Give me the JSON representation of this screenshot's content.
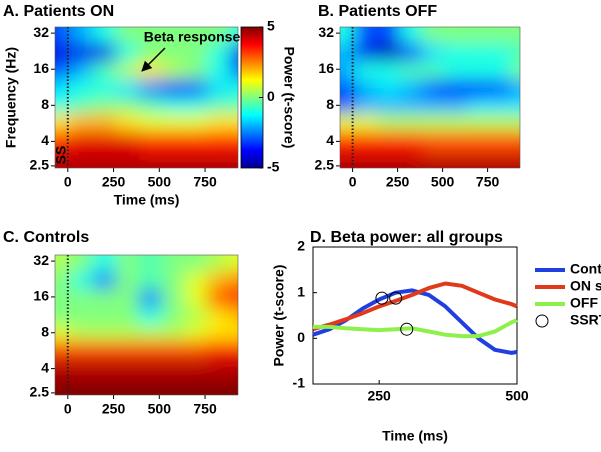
{
  "chart_data": [
    {
      "type": "heatmap",
      "title": "A. Patients ON",
      "xlabel": "Time (ms)",
      "ylabel": "Frequency (Hz)",
      "x": [
        -50,
        75,
        200,
        325,
        450,
        575,
        700,
        825,
        950
      ],
      "y": [
        2.5,
        4,
        6,
        8,
        11,
        16,
        22,
        32
      ],
      "values": [
        [
          4.5,
          4.5,
          4.5,
          4.5,
          4.5,
          4.5,
          4.5,
          4.5,
          4.5
        ],
        [
          3.5,
          4,
          4,
          4,
          3.5,
          3.5,
          3.5,
          3.5,
          3.5
        ],
        [
          1.5,
          2,
          2,
          1.5,
          1,
          1,
          1,
          1.5,
          1.5
        ],
        [
          -1,
          -0.5,
          0,
          0,
          -0.5,
          -1,
          -1,
          -0.5,
          -0.5
        ],
        [
          -1.5,
          -1,
          -1,
          -1.5,
          -2.5,
          -3.5,
          -3,
          -1.5,
          -1
        ],
        [
          -3,
          -2,
          -0.5,
          0.5,
          1.5,
          0.5,
          0,
          -1,
          -3
        ],
        [
          -4,
          -4,
          -4,
          -1,
          0,
          0,
          0,
          -1,
          -4
        ],
        [
          -3,
          -2,
          -1,
          0,
          0,
          0,
          0,
          0,
          -1
        ]
      ],
      "xlim": [
        -70,
        930
      ],
      "xticks": [
        0,
        250,
        500,
        750
      ],
      "ylim": [
        2.4,
        36
      ],
      "yticks": [
        2.5,
        4,
        8,
        16,
        32
      ],
      "ylog": true,
      "clim": [
        -5,
        5
      ],
      "colormap": "jet",
      "marker_x": 0,
      "colorbar": {
        "label": "Power (t-score)",
        "ticks": [
          5,
          0,
          -5
        ]
      },
      "annotations": [
        "Beta response",
        "SS"
      ]
    },
    {
      "type": "heatmap",
      "title": "B. Patients OFF",
      "x": [
        -50,
        75,
        200,
        325,
        450,
        575,
        700,
        825,
        950
      ],
      "y": [
        2.5,
        4,
        6,
        8,
        11,
        16,
        22,
        32
      ],
      "values": [
        [
          4.5,
          4.5,
          4.5,
          4.5,
          4.5,
          4.5,
          4.5,
          4.5,
          4.5
        ],
        [
          3.5,
          3.5,
          3.5,
          3.5,
          3,
          3,
          3,
          3,
          3
        ],
        [
          1,
          1,
          0.5,
          0.5,
          0.5,
          0.5,
          0.5,
          0.5,
          0.5
        ],
        [
          -3,
          -2,
          -2,
          -2,
          -2,
          -2,
          -1.5,
          -1.5,
          -1.5
        ],
        [
          -3,
          -2,
          -1.5,
          -2,
          -3,
          -3.5,
          -3.5,
          -3,
          -2
        ],
        [
          -2,
          -1,
          -1,
          -0.5,
          -0.5,
          -1,
          -1,
          -1,
          0
        ],
        [
          -2,
          -4,
          -4.5,
          -3,
          -1.5,
          -1,
          -1,
          -1,
          -0.5
        ],
        [
          -1,
          -3,
          -3,
          -1,
          0,
          0,
          0,
          0,
          0
        ]
      ],
      "xlim": [
        -70,
        930
      ],
      "xticks": [
        0,
        250,
        500,
        750
      ],
      "ylim": [
        2.4,
        36
      ],
      "yticks": [
        2.5,
        4,
        8,
        16,
        32
      ],
      "ylog": true,
      "clim": [
        -5,
        5
      ],
      "colormap": "jet",
      "marker_x": 0
    },
    {
      "type": "heatmap",
      "title": "C. Controls",
      "x": [
        -50,
        75,
        200,
        325,
        450,
        575,
        700,
        825,
        950
      ],
      "y": [
        2.5,
        4,
        6,
        8,
        11,
        16,
        22,
        32
      ],
      "values": [
        [
          5,
          5,
          5,
          5,
          5,
          5,
          5,
          5,
          5
        ],
        [
          4.5,
          4.5,
          4.5,
          4.5,
          4.5,
          4.5,
          4.5,
          4.5,
          4.5
        ],
        [
          3,
          3,
          3,
          3,
          3,
          3,
          3,
          3.5,
          3.5
        ],
        [
          1,
          0.5,
          0.5,
          0.5,
          0.5,
          0.5,
          1,
          1.5,
          1.5
        ],
        [
          0,
          0,
          0,
          0,
          -1,
          0,
          0.5,
          1.5,
          2
        ],
        [
          0,
          0,
          0,
          0,
          -2.5,
          0,
          1,
          3,
          3.5
        ],
        [
          0,
          -1,
          -2.5,
          0,
          -0.5,
          0,
          1,
          2,
          2.5
        ],
        [
          0.5,
          0,
          -1,
          0,
          -0.5,
          0,
          0,
          0.5,
          1
        ]
      ],
      "xlim": [
        -70,
        930
      ],
      "xticks": [
        0,
        250,
        500,
        750
      ],
      "ylim": [
        2.4,
        36
      ],
      "yticks": [
        2.5,
        4,
        8,
        16,
        32
      ],
      "ylog": true,
      "clim": [
        -5,
        5
      ],
      "colormap": "jet",
      "marker_x": 0
    },
    {
      "type": "line",
      "title": "D. Beta power: all groups",
      "xlabel": "Time (ms)",
      "ylabel": "Power (t-score)",
      "x": [
        130,
        160,
        190,
        220,
        250,
        280,
        310,
        340,
        370,
        400,
        430,
        460,
        490,
        500
      ],
      "series": [
        {
          "name": "Control",
          "color": "#1f3fe0",
          "values": [
            0.08,
            0.2,
            0.4,
            0.65,
            0.85,
            1.0,
            1.05,
            0.95,
            0.7,
            0.35,
            0.0,
            -0.25,
            -0.32,
            -0.3
          ]
        },
        {
          "name": "ON stim.",
          "color": "#e03a1a",
          "values": [
            0.2,
            0.3,
            0.42,
            0.55,
            0.7,
            0.82,
            0.95,
            1.1,
            1.2,
            1.15,
            1.0,
            0.85,
            0.75,
            0.7
          ]
        },
        {
          "name": "OFF stim.",
          "color": "#8ef04a",
          "values": [
            0.25,
            0.25,
            0.22,
            0.2,
            0.18,
            0.2,
            0.22,
            0.15,
            0.08,
            0.05,
            0.05,
            0.15,
            0.35,
            0.4
          ]
        }
      ],
      "markers": {
        "name": "SSRT",
        "x": [
          255,
          280,
          300
        ],
        "values": [
          0.88,
          0.88,
          0.2
        ]
      },
      "xlim": [
        130,
        500
      ],
      "xticks": [
        250,
        500
      ],
      "ylim": [
        -1,
        2
      ],
      "yticks": [
        -1,
        0,
        1,
        2
      ]
    }
  ]
}
